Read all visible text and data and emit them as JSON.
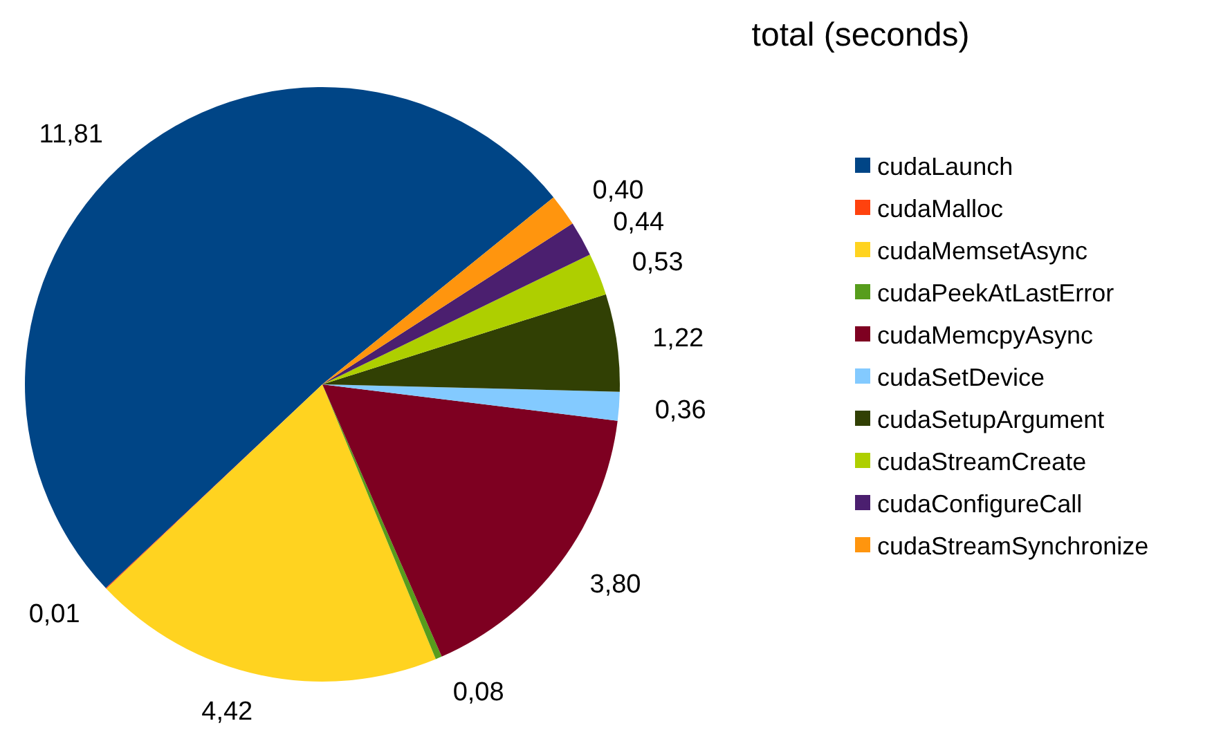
{
  "chart_data": {
    "type": "pie",
    "title": "total (seconds)",
    "categories": [
      "cudaLaunch",
      "cudaMalloc",
      "cudaMemsetAsync",
      "cudaPeekAtLastError",
      "cudaMemcpyAsync",
      "cudaSetDevice",
      "cudaSetupArgument",
      "cudaStreamCreate",
      "cudaConfigureCall",
      "cudaStreamSynchronize"
    ],
    "values": [
      11.81,
      0.01,
      4.42,
      0.08,
      3.8,
      0.36,
      1.22,
      0.53,
      0.44,
      0.4
    ],
    "value_labels": [
      "11,81",
      "0,01",
      "4,42",
      "0,08",
      "3,80",
      "0,36",
      "1,22",
      "0,53",
      "0,44",
      "0,40"
    ],
    "colors": [
      "#004586",
      "#ff420e",
      "#ffd320",
      "#579d1c",
      "#7e0021",
      "#83caff",
      "#314004",
      "#aecf00",
      "#4b1f6f",
      "#ff950e"
    ],
    "legend": "right"
  }
}
